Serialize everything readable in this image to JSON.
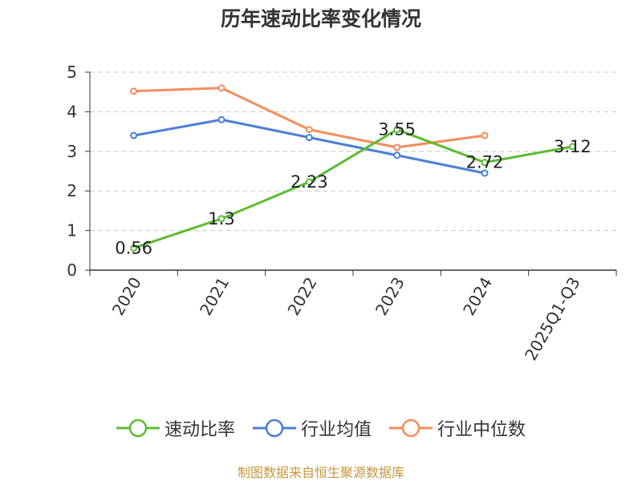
{
  "chart_data": {
    "type": "line",
    "title": "历年速动比率变化情况",
    "categories": [
      "2020",
      "2021",
      "2022",
      "2023",
      "2024",
      "2025Q1-Q3"
    ],
    "ylim": [
      0,
      5
    ],
    "yticks": [
      0,
      1,
      2,
      3,
      4,
      5
    ],
    "grid": true,
    "legend_position": "bottom",
    "series": [
      {
        "name": "速动比率",
        "color": "#5cbc32",
        "values": [
          0.56,
          1.3,
          2.23,
          3.55,
          2.72,
          3.12
        ],
        "labels": [
          "0.56",
          "1.3",
          "2.23",
          "3.55",
          "2.72",
          "3.12"
        ]
      },
      {
        "name": "行业均值",
        "color": "#4a7fd6",
        "values": [
          3.4,
          3.8,
          3.35,
          2.9,
          2.45,
          null
        ]
      },
      {
        "name": "行业中位数",
        "color": "#f58d5c",
        "values": [
          4.52,
          4.6,
          3.55,
          3.1,
          3.4,
          null
        ]
      }
    ]
  },
  "source": "制图数据来自恒生聚源数据库"
}
